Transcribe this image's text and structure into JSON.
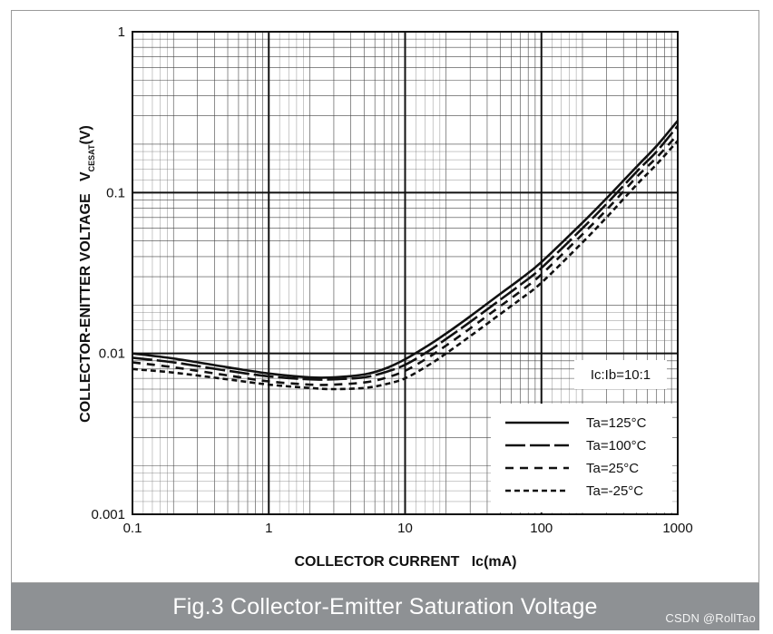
{
  "caption": "Fig.3 Collector-Emitter Saturation Voltage",
  "watermark": "CSDN @RollTao",
  "chart_data": {
    "type": "line",
    "title": "",
    "xlabel": "COLLECTOR CURRENT   Ic(mA)",
    "ylabel_main": "COLLECTOR-ENITTER VOLTAGE   V",
    "ylabel_sub": "CESAT",
    "ylabel_unit": "(V)",
    "xscale": "log",
    "yscale": "log",
    "xlim": [
      0.1,
      1000
    ],
    "ylim": [
      0.001,
      1
    ],
    "x_ticks": [
      {
        "value": 0.1,
        "label": "0.1"
      },
      {
        "value": 1,
        "label": "1"
      },
      {
        "value": 10,
        "label": "10"
      },
      {
        "value": 100,
        "label": "100"
      },
      {
        "value": 1000,
        "label": "1000"
      }
    ],
    "y_ticks": [
      {
        "value": 0.001,
        "label": "0.001"
      },
      {
        "value": 0.01,
        "label": "0.01"
      },
      {
        "value": 0.1,
        "label": "0.1"
      },
      {
        "value": 1,
        "label": "1"
      }
    ],
    "grid": true,
    "annotation": "Ic:Ib=10:1",
    "legend_position": "bottom-right",
    "series": [
      {
        "name": "Ta=125°C",
        "dash": "solid",
        "x": [
          0.1,
          0.2,
          0.5,
          1,
          2,
          3,
          5,
          7,
          10,
          15,
          20,
          30,
          50,
          70,
          100,
          200,
          300,
          500,
          700,
          1000
        ],
        "y": [
          0.01,
          0.0093,
          0.0082,
          0.0075,
          0.0071,
          0.0071,
          0.0074,
          0.008,
          0.0092,
          0.0113,
          0.0133,
          0.017,
          0.0235,
          0.029,
          0.037,
          0.065,
          0.092,
          0.145,
          0.195,
          0.28
        ]
      },
      {
        "name": "Ta=100°C",
        "dash": "long-dash",
        "x": [
          0.1,
          0.2,
          0.5,
          1,
          2,
          3,
          5,
          7,
          10,
          15,
          20,
          30,
          50,
          70,
          100,
          200,
          300,
          500,
          700,
          1000
        ],
        "y": [
          0.0094,
          0.0088,
          0.0078,
          0.0072,
          0.0069,
          0.0069,
          0.0071,
          0.0076,
          0.0085,
          0.0104,
          0.0123,
          0.0157,
          0.0216,
          0.0267,
          0.034,
          0.06,
          0.085,
          0.135,
          0.18,
          0.26
        ]
      },
      {
        "name": "Ta=25°C",
        "dash": "dash",
        "x": [
          0.1,
          0.2,
          0.5,
          1,
          2,
          3,
          5,
          7,
          10,
          15,
          20,
          30,
          50,
          70,
          100,
          200,
          300,
          500,
          700,
          1000
        ],
        "y": [
          0.0088,
          0.0082,
          0.0073,
          0.0067,
          0.0064,
          0.0064,
          0.0066,
          0.007,
          0.0078,
          0.0095,
          0.0112,
          0.0143,
          0.0197,
          0.0243,
          0.031,
          0.055,
          0.078,
          0.125,
          0.165,
          0.23
        ]
      },
      {
        "name": "Ta=-25°C",
        "dash": "short-dash",
        "x": [
          0.1,
          0.2,
          0.5,
          1,
          2,
          3,
          5,
          7,
          10,
          15,
          20,
          30,
          50,
          70,
          100,
          200,
          300,
          500,
          700,
          1000
        ],
        "y": [
          0.008,
          0.0076,
          0.0069,
          0.0064,
          0.0061,
          0.006,
          0.0061,
          0.0064,
          0.007,
          0.0085,
          0.01,
          0.0128,
          0.0176,
          0.0217,
          0.0275,
          0.049,
          0.07,
          0.112,
          0.15,
          0.21
        ]
      }
    ]
  }
}
